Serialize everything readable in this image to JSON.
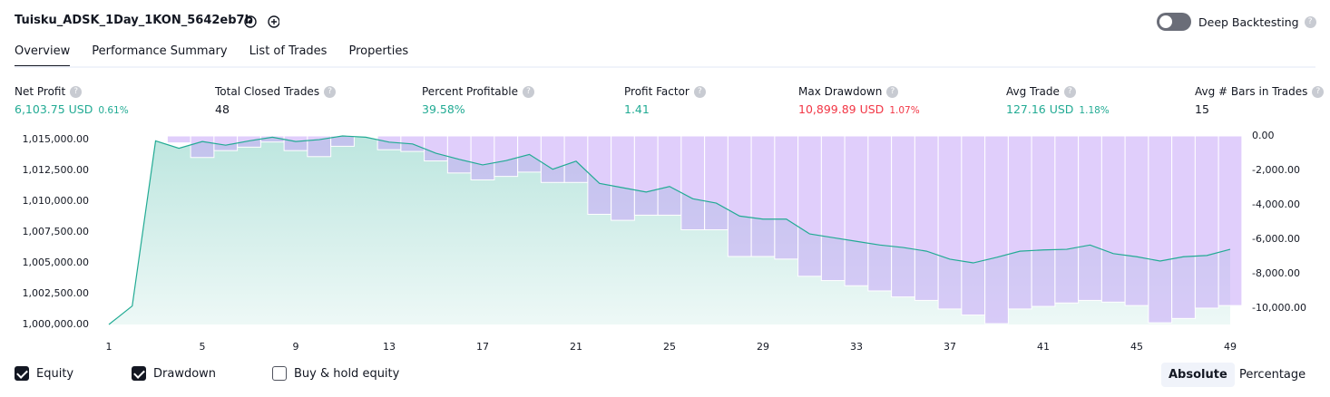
{
  "header": {
    "title": "Tuisku_ADSK_1Day_1KON_5642eb7b",
    "deep_backtesting": "Deep Backtesting"
  },
  "tabs": [
    "Overview",
    "Performance Summary",
    "List of Trades",
    "Properties"
  ],
  "metrics": [
    {
      "label": "Net Profit",
      "value": "6,103.75 USD",
      "percent": "0.61%",
      "tone": "positive"
    },
    {
      "label": "Total Closed Trades",
      "value": "48",
      "tone": "neutral"
    },
    {
      "label": "Percent Profitable",
      "value": "39.58%",
      "tone": "positive"
    },
    {
      "label": "Profit Factor",
      "value": "1.41",
      "tone": "positive"
    },
    {
      "label": "Max Drawdown",
      "value": "10,899.89 USD",
      "percent": "1.07%",
      "tone": "negative"
    },
    {
      "label": "Avg Trade",
      "value": "127.16 USD",
      "percent": "1.18%",
      "tone": "positive"
    },
    {
      "label": "Avg # Bars in Trades",
      "value": "15",
      "tone": "neutral"
    }
  ],
  "chart_data": {
    "type": "line",
    "x": [
      1,
      2,
      3,
      4,
      5,
      6,
      7,
      8,
      9,
      10,
      11,
      12,
      13,
      14,
      15,
      16,
      17,
      18,
      19,
      20,
      21,
      22,
      23,
      24,
      25,
      26,
      27,
      28,
      29,
      30,
      31,
      32,
      33,
      34,
      35,
      36,
      37,
      38,
      39,
      40,
      41,
      42,
      43,
      44,
      45,
      46,
      47,
      48,
      49
    ],
    "xlim": [
      1,
      49
    ],
    "xticks": [
      1,
      5,
      9,
      13,
      17,
      21,
      25,
      29,
      33,
      37,
      41,
      45,
      49
    ],
    "ylim": [
      1000000,
      1015300
    ],
    "yticks": [
      {
        "value": 1000000,
        "label": "1,000,000.00"
      },
      {
        "value": 1002500,
        "label": "1,002,500.00"
      },
      {
        "value": 1005000,
        "label": "1,005,000.00"
      },
      {
        "value": 1007500,
        "label": "1,007,500.00"
      },
      {
        "value": 1010000,
        "label": "1,010,000.00"
      },
      {
        "value": 1012500,
        "label": "1,012,500.00"
      },
      {
        "value": 1015000,
        "label": "1,015,000.00"
      }
    ],
    "y2lim": [
      -10950,
      0
    ],
    "y2ticks": [
      {
        "value": 0,
        "label": "0.00"
      },
      {
        "value": -2000,
        "label": "-2,000.00"
      },
      {
        "value": -4000,
        "label": "-4,000.00"
      },
      {
        "value": -6000,
        "label": "-6,000.00"
      },
      {
        "value": -8000,
        "label": "-8,000.00"
      },
      {
        "value": -10000,
        "label": "-10,000.00"
      }
    ],
    "series": [
      {
        "name": "Equity",
        "color": "#22ab94",
        "values": [
          1000000,
          1001500,
          1014900,
          1014300,
          1014850,
          1014550,
          1014900,
          1015200,
          1014850,
          1015000,
          1015300,
          1015200,
          1014800,
          1014650,
          1013900,
          1013400,
          1012950,
          1013300,
          1013800,
          1012600,
          1013250,
          1011450,
          1011100,
          1010750,
          1011200,
          1010200,
          1009850,
          1008800,
          1008550,
          1008550,
          1007350,
          1007050,
          1006750,
          1006450,
          1006250,
          1005950,
          1005300,
          1005000,
          1005450,
          1005950,
          1006050,
          1006100,
          1006450,
          1005750,
          1005500,
          1005150,
          1005500,
          1005600,
          1006104
        ]
      },
      {
        "name": "Drawdown",
        "type": "bar",
        "axis": "y2",
        "color": "#c7a6f7",
        "values": [
          0,
          0,
          0,
          -400,
          -1250,
          -850,
          -650,
          -350,
          -850,
          -1200,
          -600,
          0,
          -800,
          -900,
          -1450,
          -2150,
          -2550,
          -2350,
          -2100,
          -2700,
          -2700,
          -4550,
          -4900,
          -4600,
          -4600,
          -5450,
          -5450,
          -7000,
          -7000,
          -7150,
          -8150,
          -8400,
          -8700,
          -9000,
          -9350,
          -9550,
          -10050,
          -10400,
          -10900,
          -10050,
          -9900,
          -9700,
          -9550,
          -9650,
          -9850,
          -10850,
          -10600,
          -10000,
          -9850
        ]
      }
    ]
  },
  "legend_options": [
    "Buy & hold equity"
  ],
  "view_modes": [
    "Absolute",
    "Percentage"
  ]
}
